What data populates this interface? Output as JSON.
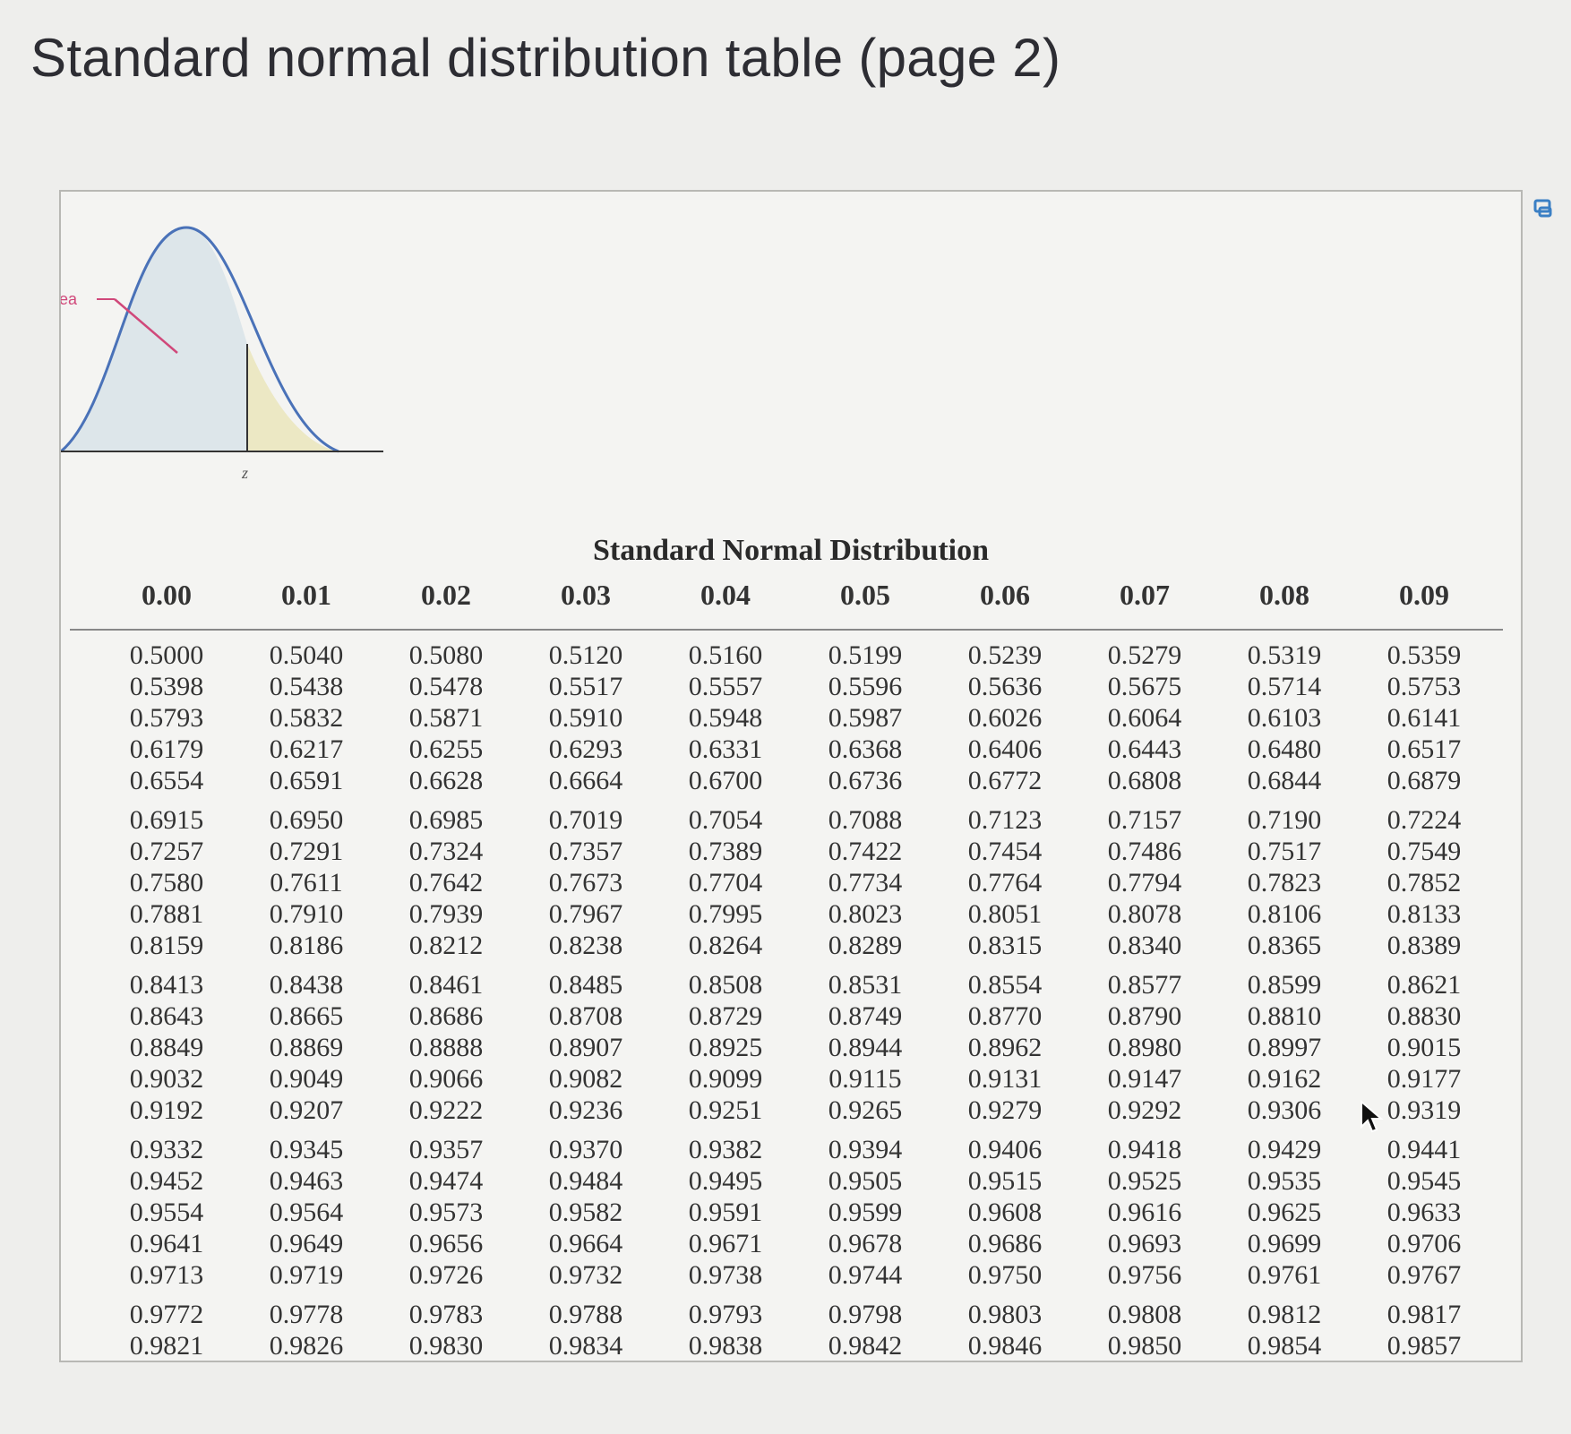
{
  "page": {
    "title": "Standard normal distribution table (page 2)"
  },
  "figure": {
    "area_label": "rea",
    "z_label": "z"
  },
  "table": {
    "caption": "Standard Normal Distribution",
    "columns": [
      "0.00",
      "0.01",
      "0.02",
      "0.03",
      "0.04",
      "0.05",
      "0.06",
      "0.07",
      "0.08",
      "0.09"
    ],
    "row_groups": [
      [
        [
          "0.5000",
          "0.5040",
          "0.5080",
          "0.5120",
          "0.5160",
          "0.5199",
          "0.5239",
          "0.5279",
          "0.5319",
          "0.5359"
        ],
        [
          "0.5398",
          "0.5438",
          "0.5478",
          "0.5517",
          "0.5557",
          "0.5596",
          "0.5636",
          "0.5675",
          "0.5714",
          "0.5753"
        ],
        [
          "0.5793",
          "0.5832",
          "0.5871",
          "0.5910",
          "0.5948",
          "0.5987",
          "0.6026",
          "0.6064",
          "0.6103",
          "0.6141"
        ],
        [
          "0.6179",
          "0.6217",
          "0.6255",
          "0.6293",
          "0.6331",
          "0.6368",
          "0.6406",
          "0.6443",
          "0.6480",
          "0.6517"
        ],
        [
          "0.6554",
          "0.6591",
          "0.6628",
          "0.6664",
          "0.6700",
          "0.6736",
          "0.6772",
          "0.6808",
          "0.6844",
          "0.6879"
        ]
      ],
      [
        [
          "0.6915",
          "0.6950",
          "0.6985",
          "0.7019",
          "0.7054",
          "0.7088",
          "0.7123",
          "0.7157",
          "0.7190",
          "0.7224"
        ],
        [
          "0.7257",
          "0.7291",
          "0.7324",
          "0.7357",
          "0.7389",
          "0.7422",
          "0.7454",
          "0.7486",
          "0.7517",
          "0.7549"
        ],
        [
          "0.7580",
          "0.7611",
          "0.7642",
          "0.7673",
          "0.7704",
          "0.7734",
          "0.7764",
          "0.7794",
          "0.7823",
          "0.7852"
        ],
        [
          "0.7881",
          "0.7910",
          "0.7939",
          "0.7967",
          "0.7995",
          "0.8023",
          "0.8051",
          "0.8078",
          "0.8106",
          "0.8133"
        ],
        [
          "0.8159",
          "0.8186",
          "0.8212",
          "0.8238",
          "0.8264",
          "0.8289",
          "0.8315",
          "0.8340",
          "0.8365",
          "0.8389"
        ]
      ],
      [
        [
          "0.8413",
          "0.8438",
          "0.8461",
          "0.8485",
          "0.8508",
          "0.8531",
          "0.8554",
          "0.8577",
          "0.8599",
          "0.8621"
        ],
        [
          "0.8643",
          "0.8665",
          "0.8686",
          "0.8708",
          "0.8729",
          "0.8749",
          "0.8770",
          "0.8790",
          "0.8810",
          "0.8830"
        ],
        [
          "0.8849",
          "0.8869",
          "0.8888",
          "0.8907",
          "0.8925",
          "0.8944",
          "0.8962",
          "0.8980",
          "0.8997",
          "0.9015"
        ],
        [
          "0.9032",
          "0.9049",
          "0.9066",
          "0.9082",
          "0.9099",
          "0.9115",
          "0.9131",
          "0.9147",
          "0.9162",
          "0.9177"
        ],
        [
          "0.9192",
          "0.9207",
          "0.9222",
          "0.9236",
          "0.9251",
          "0.9265",
          "0.9279",
          "0.9292",
          "0.9306",
          "0.9319"
        ]
      ],
      [
        [
          "0.9332",
          "0.9345",
          "0.9357",
          "0.9370",
          "0.9382",
          "0.9394",
          "0.9406",
          "0.9418",
          "0.9429",
          "0.9441"
        ],
        [
          "0.9452",
          "0.9463",
          "0.9474",
          "0.9484",
          "0.9495",
          "0.9505",
          "0.9515",
          "0.9525",
          "0.9535",
          "0.9545"
        ],
        [
          "0.9554",
          "0.9564",
          "0.9573",
          "0.9582",
          "0.9591",
          "0.9599",
          "0.9608",
          "0.9616",
          "0.9625",
          "0.9633"
        ],
        [
          "0.9641",
          "0.9649",
          "0.9656",
          "0.9664",
          "0.9671",
          "0.9678",
          "0.9686",
          "0.9693",
          "0.9699",
          "0.9706"
        ],
        [
          "0.9713",
          "0.9719",
          "0.9726",
          "0.9732",
          "0.9738",
          "0.9744",
          "0.9750",
          "0.9756",
          "0.9761",
          "0.9767"
        ]
      ],
      [
        [
          "0.9772",
          "0.9778",
          "0.9783",
          "0.9788",
          "0.9793",
          "0.9798",
          "0.9803",
          "0.9808",
          "0.9812",
          "0.9817"
        ],
        [
          "0.9821",
          "0.9826",
          "0.9830",
          "0.9834",
          "0.9838",
          "0.9842",
          "0.9846",
          "0.9850",
          "0.9854",
          "0.9857"
        ]
      ]
    ]
  },
  "icons": {
    "copy": "copy-icon",
    "cursor": "mouse-pointer-icon"
  },
  "colors": {
    "curve": "#4a72b8",
    "curve_fill": "#dde6ea",
    "tail_fill": "#ece8c4",
    "label_line": "#d0487a",
    "copy_icon": "#3a7fc4"
  }
}
